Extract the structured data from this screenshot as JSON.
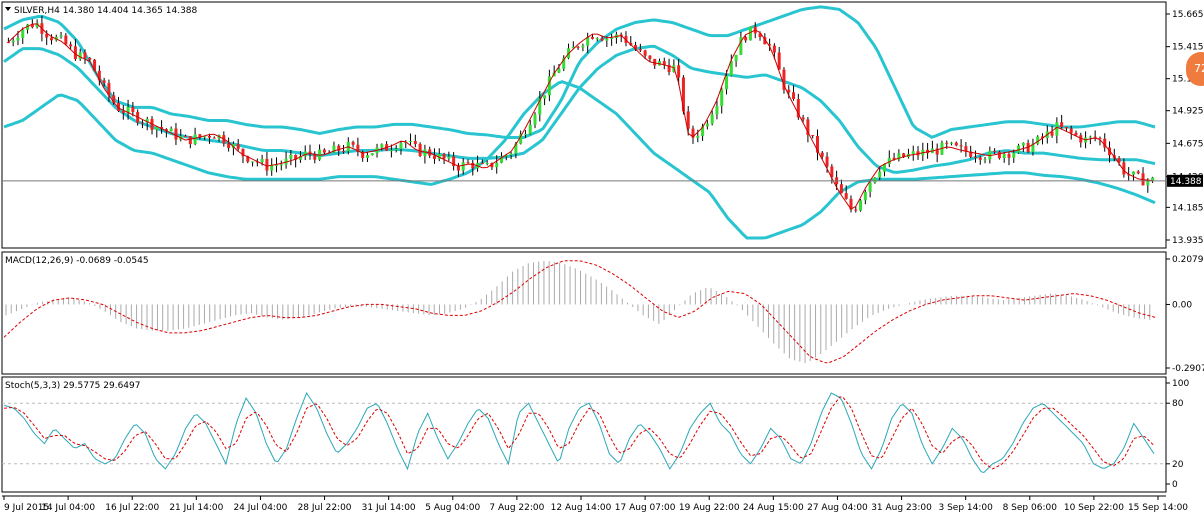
{
  "chart_data": [
    {
      "type": "candlestick",
      "panel": "price",
      "title": "SILVER,H4  14.380 14.404 14.365 14.388",
      "ylim": [
        13.935,
        15.665
      ],
      "yticks": [
        "15.665",
        "15.415",
        "15.170",
        "14.925",
        "14.675",
        "14.420",
        "14.185",
        "13.935"
      ],
      "current_price": "14.388",
      "close_path": [
        15.45,
        15.55,
        15.6,
        15.5,
        15.45,
        15.35,
        15.3,
        15.1,
        14.95,
        14.9,
        14.85,
        14.8,
        14.75,
        14.7,
        14.72,
        14.75,
        14.7,
        14.6,
        14.55,
        14.5,
        14.52,
        14.55,
        14.6,
        14.58,
        14.62,
        14.65,
        14.6,
        14.62,
        14.65,
        14.7,
        14.62,
        14.6,
        14.55,
        14.5,
        14.52,
        14.48,
        14.55,
        14.62,
        14.8,
        15.0,
        15.2,
        15.35,
        15.45,
        15.52,
        15.48,
        15.5,
        15.4,
        15.3,
        15.28,
        15.25,
        14.7,
        14.8,
        15.0,
        15.3,
        15.5,
        15.55,
        15.4,
        15.1,
        14.9,
        14.7,
        14.5,
        14.3,
        14.15,
        14.35,
        14.5,
        14.55,
        14.58,
        14.6,
        14.62,
        14.65,
        14.62,
        14.6,
        14.58,
        14.6,
        14.62,
        14.65,
        14.72,
        14.8,
        14.75,
        14.7,
        14.72,
        14.6,
        14.45,
        14.4,
        14.39
      ],
      "bollinger_upper_path": [
        15.55,
        15.62,
        15.65,
        15.6,
        15.45,
        15.2,
        15.0,
        14.95,
        14.95,
        14.9,
        14.88,
        14.85,
        14.85,
        14.82,
        14.8,
        14.8,
        14.78,
        14.75,
        14.78,
        14.8,
        14.8,
        14.82,
        14.82,
        14.8,
        14.78,
        14.75,
        14.74,
        14.72,
        14.72,
        14.78,
        15.0,
        15.3,
        15.45,
        15.55,
        15.6,
        15.62,
        15.6,
        15.55,
        15.5,
        15.5,
        15.55,
        15.6,
        15.65,
        15.7,
        15.72,
        15.7,
        15.6,
        15.4,
        15.1,
        14.8,
        14.72,
        14.78,
        14.8,
        14.82,
        14.84,
        14.84,
        14.82,
        14.8,
        14.8,
        14.82,
        14.84,
        14.84,
        14.8
      ],
      "bollinger_middle_path": [
        15.3,
        15.4,
        15.4,
        15.35,
        15.25,
        15.1,
        14.95,
        14.85,
        14.8,
        14.75,
        14.72,
        14.7,
        14.68,
        14.65,
        14.62,
        14.62,
        14.6,
        14.58,
        14.6,
        14.62,
        14.62,
        14.63,
        14.62,
        14.6,
        14.58,
        14.56,
        14.56,
        14.57,
        14.6,
        14.7,
        14.9,
        15.1,
        15.25,
        15.35,
        15.4,
        15.42,
        15.35,
        15.25,
        15.22,
        15.2,
        15.18,
        15.2,
        15.15,
        15.1,
        15.0,
        14.85,
        14.65,
        14.5,
        14.45,
        14.47,
        14.5,
        14.52,
        14.55,
        14.6,
        14.62,
        14.6,
        14.6,
        14.58,
        14.56,
        14.55,
        14.55,
        14.55,
        14.52
      ],
      "bollinger_lower_path": [
        14.8,
        14.85,
        14.95,
        15.05,
        15.0,
        14.85,
        14.7,
        14.62,
        14.6,
        14.55,
        14.5,
        14.45,
        14.42,
        14.4,
        14.4,
        14.4,
        14.4,
        14.4,
        14.42,
        14.42,
        14.42,
        14.4,
        14.38,
        14.36,
        14.4,
        14.45,
        14.55,
        14.7,
        14.9,
        15.05,
        15.15,
        15.1,
        15.0,
        14.9,
        14.75,
        14.6,
        14.5,
        14.4,
        14.3,
        14.1,
        13.95,
        13.95,
        14.0,
        14.05,
        14.15,
        14.3,
        14.38,
        14.4,
        14.4,
        14.4,
        14.41,
        14.42,
        14.43,
        14.44,
        14.45,
        14.45,
        14.43,
        14.42,
        14.4,
        14.37,
        14.33,
        14.28,
        14.22
      ]
    },
    {
      "type": "histogram",
      "panel": "macd",
      "title": "MACD(12,26,9) -0.0689 -0.0545",
      "ylim": [
        -0.2907,
        0.2079
      ],
      "yticks": [
        "0.2079",
        "0.00",
        "-0.2907"
      ],
      "histogram_path": [
        -0.05,
        -0.02,
        0.01,
        0.02,
        0.03,
        0.01,
        -0.03,
        -0.08,
        -0.11,
        -0.12,
        -0.12,
        -0.11,
        -0.09,
        -0.07,
        -0.05,
        -0.04,
        -0.06,
        -0.07,
        -0.06,
        -0.04,
        -0.02,
        -0.01,
        -0.01,
        -0.02,
        -0.03,
        -0.04,
        -0.05,
        -0.04,
        -0.02,
        0.02,
        0.08,
        0.15,
        0.19,
        0.2,
        0.19,
        0.16,
        0.12,
        0.07,
        0.01,
        -0.05,
        -0.09,
        -0.02,
        0.05,
        0.08,
        0.04,
        -0.02,
        -0.1,
        -0.18,
        -0.25,
        -0.27,
        -0.22,
        -0.16,
        -0.1,
        -0.05,
        -0.02,
        0.0,
        0.02,
        0.03,
        0.04,
        0.04,
        0.03,
        0.02,
        0.03,
        0.04,
        0.05,
        0.04,
        0.02,
        -0.01,
        -0.04,
        -0.06,
        -0.07
      ],
      "signal_path": [
        -0.15,
        -0.08,
        -0.02,
        0.02,
        0.03,
        0.02,
        0.0,
        -0.04,
        -0.08,
        -0.11,
        -0.13,
        -0.13,
        -0.12,
        -0.1,
        -0.08,
        -0.06,
        -0.05,
        -0.06,
        -0.06,
        -0.05,
        -0.03,
        -0.01,
        0.0,
        0.0,
        -0.01,
        -0.02,
        -0.04,
        -0.05,
        -0.05,
        -0.03,
        0.01,
        0.06,
        0.12,
        0.17,
        0.2,
        0.2,
        0.18,
        0.14,
        0.09,
        0.03,
        -0.03,
        -0.06,
        -0.03,
        0.03,
        0.06,
        0.05,
        0.0,
        -0.08,
        -0.16,
        -0.24,
        -0.27,
        -0.24,
        -0.18,
        -0.12,
        -0.07,
        -0.03,
        0.0,
        0.02,
        0.03,
        0.04,
        0.04,
        0.03,
        0.02,
        0.03,
        0.04,
        0.05,
        0.04,
        0.02,
        -0.01,
        -0.04,
        -0.06
      ]
    },
    {
      "type": "line",
      "panel": "stochastic",
      "title": "Stoch(5,3,3) 29.5775 29.6497",
      "ylim": [
        0,
        100
      ],
      "yticks": [
        "100",
        "80",
        "20",
        "0"
      ],
      "levels": [
        80,
        20
      ],
      "main_path": [
        78,
        75,
        65,
        50,
        40,
        55,
        45,
        35,
        40,
        25,
        20,
        25,
        45,
        60,
        50,
        25,
        15,
        30,
        55,
        70,
        60,
        40,
        20,
        60,
        85,
        70,
        40,
        20,
        35,
        65,
        90,
        75,
        50,
        30,
        40,
        55,
        75,
        80,
        60,
        35,
        15,
        50,
        70,
        45,
        25,
        40,
        60,
        75,
        65,
        40,
        20,
        70,
        80,
        60,
        40,
        20,
        55,
        75,
        80,
        60,
        30,
        20,
        45,
        60,
        50,
        35,
        15,
        30,
        55,
        70,
        80,
        60,
        50,
        30,
        20,
        35,
        55,
        45,
        25,
        20,
        40,
        70,
        90,
        85,
        60,
        30,
        15,
        35,
        65,
        80,
        70,
        40,
        20,
        35,
        55,
        45,
        25,
        10,
        20,
        25,
        40,
        60,
        75,
        80,
        70,
        60,
        50,
        40,
        20,
        15,
        20,
        35,
        60,
        45,
        30
      ],
      "signal_path": [
        75,
        76,
        70,
        58,
        45,
        48,
        48,
        40,
        38,
        32,
        25,
        23,
        33,
        48,
        52,
        40,
        25,
        25,
        40,
        58,
        62,
        52,
        35,
        40,
        65,
        72,
        58,
        38,
        32,
        50,
        75,
        80,
        65,
        45,
        38,
        45,
        62,
        75,
        70,
        52,
        30,
        35,
        55,
        55,
        40,
        35,
        48,
        65,
        70,
        55,
        35,
        48,
        70,
        70,
        55,
        35,
        40,
        60,
        75,
        70,
        48,
        30,
        35,
        50,
        55,
        45,
        30,
        25,
        40,
        58,
        72,
        70,
        58,
        42,
        28,
        30,
        45,
        48,
        38,
        25,
        30,
        52,
        75,
        88,
        75,
        50,
        28,
        25,
        45,
        65,
        75,
        60,
        38,
        30,
        42,
        48,
        38,
        22,
        15,
        20,
        32,
        48,
        65,
        75,
        75,
        67,
        57,
        48,
        35,
        22,
        18,
        25,
        45,
        48,
        38
      ]
    }
  ],
  "x_axis": {
    "labels": [
      "9 Jul 2015",
      "14 Jul 04:00",
      "16 Jul 22:00",
      "21 Jul 14:00",
      "24 Jul 04:00",
      "28 Jul 22:00",
      "31 Jul 14:00",
      "5 Aug 04:00",
      "7 Aug 22:00",
      "12 Aug 14:00",
      "17 Aug 07:00",
      "19 Aug 22:00",
      "24 Aug 15:00",
      "27 Aug 04:00",
      "31 Aug 23:00",
      "3 Sep 14:00",
      "8 Sep 06:00",
      "10 Sep 22:00",
      "15 Sep 14:00"
    ]
  },
  "colors": {
    "bull": "#33dd33",
    "bear": "#ee2222",
    "wick": "#000000",
    "bollinger": "#28c4d0",
    "ma": "#cc0000",
    "macd_hist": "#aaaaaa",
    "macd_signal": "#dd0000",
    "stoch_main": "#2ba8b8",
    "stoch_signal": "#dd0000",
    "current_label_bg": "#000000",
    "badge": "#f07b3e"
  },
  "badge": {
    "text": "72"
  }
}
